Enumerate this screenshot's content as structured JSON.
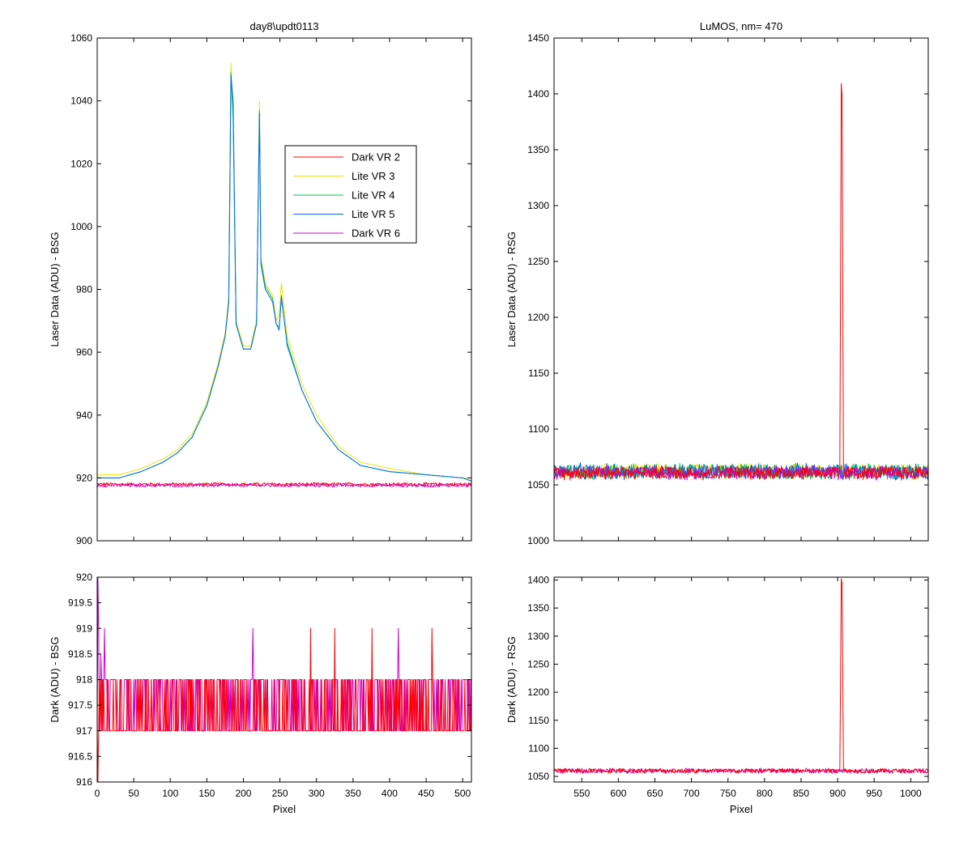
{
  "figure": {
    "background": "#ffffff",
    "colors": {
      "Dark VR 2": "#ff0000",
      "Lite VR 3": "#e6e600",
      "Lite VR 4": "#00cc44",
      "Lite VR 5": "#0066ff",
      "Dark VR 6": "#cc00cc"
    }
  },
  "chart_data": [
    {
      "id": "tl",
      "type": "line",
      "title": "day8\\updt0113",
      "xlabel": "",
      "ylabel": "Laser Data (ADU) - BSG",
      "xlim": [
        0,
        512
      ],
      "ylim": [
        900,
        1060
      ],
      "xticks": [
        0,
        50,
        100,
        150,
        200,
        250,
        300,
        350,
        400,
        450,
        500
      ],
      "xticklabels": [],
      "yticks": [
        900,
        920,
        940,
        960,
        980,
        1000,
        1020,
        1040,
        1060
      ],
      "yticklabels": [
        "900",
        "920",
        "940",
        "960",
        "980",
        "1000",
        "1020",
        "1040",
        "1060"
      ],
      "legend": {
        "position": "upper-middle",
        "entries": [
          "Dark VR 2",
          "Lite VR 3",
          "Lite VR 4",
          "Lite VR 5",
          "Dark VR 6"
        ]
      },
      "series": [
        {
          "name": "Lite VR 3",
          "color": "#e6e600",
          "x": [
            0,
            30,
            60,
            90,
            110,
            130,
            150,
            165,
            175,
            180,
            183,
            186,
            190,
            200,
            210,
            218,
            222,
            224,
            230,
            240,
            245,
            249,
            252,
            260,
            280,
            300,
            330,
            360,
            400,
            450,
            500,
            512
          ],
          "y": [
            921,
            921,
            923,
            926,
            929,
            934,
            944,
            956,
            966,
            978,
            1052,
            1035,
            970,
            962,
            962,
            970,
            1040,
            990,
            982,
            978,
            970,
            972,
            982,
            965,
            950,
            940,
            930,
            925,
            923,
            921,
            920,
            920
          ]
        },
        {
          "name": "Lite VR 4",
          "color": "#00cc44",
          "x": [
            0,
            30,
            60,
            90,
            110,
            130,
            150,
            165,
            175,
            180,
            183,
            186,
            190,
            200,
            210,
            218,
            222,
            224,
            230,
            240,
            245,
            249,
            252,
            260,
            280,
            300,
            330,
            360,
            400,
            450,
            500,
            512
          ],
          "y": [
            920,
            920,
            922,
            925,
            928,
            933,
            943,
            955,
            965,
            976,
            1049,
            1034,
            969,
            961,
            961,
            969,
            1037,
            989,
            981,
            977,
            969,
            968,
            977,
            963,
            948,
            938,
            929,
            924,
            922,
            921,
            920,
            919
          ]
        },
        {
          "name": "Lite VR 5",
          "color": "#0066ff",
          "x": [
            0,
            30,
            60,
            90,
            110,
            130,
            150,
            165,
            175,
            180,
            183,
            186,
            190,
            200,
            210,
            218,
            222,
            224,
            230,
            240,
            245,
            249,
            252,
            260,
            280,
            300,
            330,
            360,
            400,
            450,
            500,
            512
          ],
          "y": [
            920,
            920,
            922,
            925,
            928,
            933,
            943,
            955,
            965,
            976,
            1048,
            1040,
            969,
            961,
            961,
            969,
            1036,
            988,
            980,
            976,
            969,
            967,
            978,
            962,
            948,
            938,
            929,
            924,
            922,
            921,
            920,
            919
          ]
        },
        {
          "name": "Dark VR 2",
          "color": "#ff0000",
          "x": [
            0,
            512
          ],
          "y": [
            918,
            918
          ],
          "noise": 0.6
        },
        {
          "name": "Dark VR 6",
          "color": "#cc00cc",
          "x": [
            0,
            512
          ],
          "y": [
            917.6,
            917.6
          ],
          "noise": 0.6
        }
      ]
    },
    {
      "id": "tr",
      "type": "line",
      "title": "LuMOS, nm= 470",
      "xlabel": "",
      "ylabel": "Laser Data (ADU) - RSG",
      "xlim": [
        512,
        1024
      ],
      "ylim": [
        1000,
        1450
      ],
      "xticks": [
        550,
        600,
        650,
        700,
        750,
        800,
        850,
        900,
        950,
        1000
      ],
      "xticklabels": [],
      "yticks": [
        1000,
        1050,
        1100,
        1150,
        1200,
        1250,
        1300,
        1350,
        1400,
        1450
      ],
      "yticklabels": [
        "1000",
        "1050",
        "1100",
        "1150",
        "1200",
        "1250",
        "1300",
        "1350",
        "1400",
        "1450"
      ],
      "series": [
        {
          "name": "Lite VR 3",
          "color": "#e6e600",
          "x": [
            512,
            1024
          ],
          "y": [
            1062,
            1062
          ],
          "noise": 8
        },
        {
          "name": "Lite VR 4",
          "color": "#00cc44",
          "x": [
            512,
            1024
          ],
          "y": [
            1062,
            1062
          ],
          "noise": 8
        },
        {
          "name": "Lite VR 5",
          "color": "#0066ff",
          "x": [
            512,
            1024
          ],
          "y": [
            1062,
            1062
          ],
          "noise": 8
        },
        {
          "name": "Dark VR 6",
          "color": "#cc00cc",
          "x": [
            512,
            1024
          ],
          "y": [
            1061,
            1061
          ],
          "noise": 7
        },
        {
          "name": "Dark VR 2",
          "color": "#ff0000",
          "x": [
            512,
            903,
            904,
            905,
            906,
            907,
            908,
            1024
          ],
          "y": [
            1061,
            1061,
            1230,
            1405,
            1395,
            1232,
            1061,
            1061
          ],
          "noise": 7
        }
      ]
    },
    {
      "id": "bl",
      "type": "line",
      "title": "",
      "xlabel": "Pixel",
      "ylabel": "Dark (ADU) - BSG",
      "xlim": [
        0,
        512
      ],
      "ylim": [
        916,
        920
      ],
      "xticks": [
        0,
        50,
        100,
        150,
        200,
        250,
        300,
        350,
        400,
        450,
        500
      ],
      "xticklabels": [
        "0",
        "50",
        "100",
        "150",
        "200",
        "250",
        "300",
        "350",
        "400",
        "450",
        "500"
      ],
      "yticks": [
        916,
        916.5,
        917,
        917.5,
        918,
        918.5,
        919,
        919.5,
        920
      ],
      "yticklabels": [
        "916",
        "916.5",
        "917",
        "917.5",
        "918",
        "918.5",
        "919",
        "919.5",
        "920"
      ],
      "series": [
        {
          "name": "Dark VR 6",
          "color": "#cc00cc",
          "levels": [
            917,
            918
          ],
          "spikes": [
            [
              1,
              920
            ],
            [
              2,
              919
            ],
            [
              5,
              918.5
            ],
            [
              10,
              919
            ],
            [
              213,
              919
            ],
            [
              412,
              919
            ]
          ]
        },
        {
          "name": "Dark VR 2",
          "color": "#ff0000",
          "levels": [
            917,
            918
          ],
          "spikes": [
            [
              1,
              916
            ],
            [
              292,
              919
            ],
            [
              325,
              919
            ],
            [
              376,
              919
            ],
            [
              458,
              919
            ]
          ]
        }
      ]
    },
    {
      "id": "br",
      "type": "line",
      "title": "",
      "xlabel": "Pixel",
      "ylabel": "Dark (ADU) - RSG",
      "xlim": [
        512,
        1024
      ],
      "ylim": [
        1040,
        1405
      ],
      "xticks": [
        550,
        600,
        650,
        700,
        750,
        800,
        850,
        900,
        950,
        1000
      ],
      "xticklabels": [
        "550",
        "600",
        "650",
        "700",
        "750",
        "800",
        "850",
        "900",
        "950",
        "1000"
      ],
      "yticks": [
        1050,
        1100,
        1150,
        1200,
        1250,
        1300,
        1350,
        1400
      ],
      "yticklabels": [
        "1050",
        "1100",
        "1150",
        "1200",
        "1250",
        "1300",
        "1350",
        "1400"
      ],
      "series": [
        {
          "name": "Dark VR 6",
          "color": "#cc00cc",
          "x": [
            512,
            1024
          ],
          "y": [
            1060,
            1060
          ],
          "noise": 5
        },
        {
          "name": "Dark VR 2",
          "color": "#ff0000",
          "x": [
            512,
            903,
            904,
            905,
            906,
            907,
            908,
            1024
          ],
          "y": [
            1060,
            1060,
            1230,
            1405,
            1395,
            1232,
            1060,
            1060
          ],
          "noise": 5
        }
      ]
    }
  ]
}
